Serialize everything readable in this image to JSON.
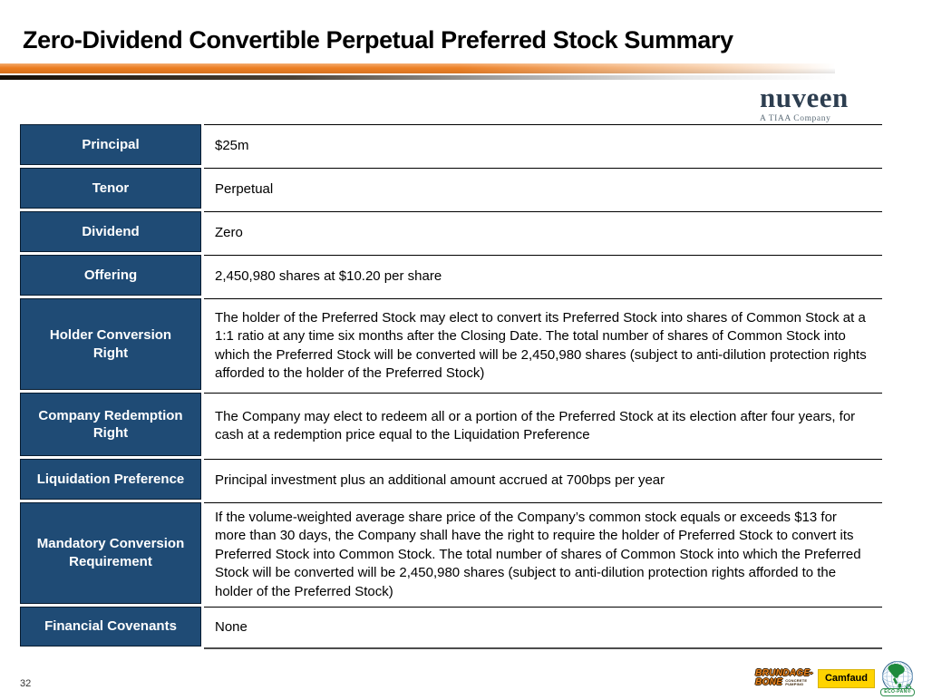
{
  "slide": {
    "title": "Zero-Dividend Convertible Perpetual Preferred Stock Summary",
    "page_number": "32"
  },
  "branding": {
    "nuveen": {
      "name": "nuveen",
      "tagline": "A TIAA Company"
    },
    "footer_logos": {
      "brundage_bone": {
        "line1": "BRUNDAGE-",
        "line2": "BONE",
        "sub_line1": "CONCRETE",
        "sub_line2": "PUMPING"
      },
      "camfaud": {
        "label": "Camfaud"
      },
      "eco_pan": {
        "label": "ECO-PAN®"
      }
    }
  },
  "table": {
    "rows": [
      {
        "label": "Principal",
        "value": "$25m"
      },
      {
        "label": "Tenor",
        "value": "Perpetual"
      },
      {
        "label": "Dividend",
        "value": "Zero"
      },
      {
        "label": "Offering",
        "value": "2,450,980 shares at $10.20 per share"
      },
      {
        "label": "Holder Conversion Right",
        "value": "The holder of the Preferred Stock may elect to convert its Preferred Stock into shares of Common Stock at a 1:1 ratio at any time six months after the Closing Date. The total number of shares of Common Stock into which the Preferred Stock will be converted will be 2,450,980 shares (subject to anti-dilution protection rights afforded to the holder of the Preferred Stock)"
      },
      {
        "label": "Company Redemption Right",
        "value": "The Company may elect to redeem all or a portion of the Preferred Stock at its election after four years, for cash at a redemption price equal to the Liquidation Preference"
      },
      {
        "label": "Liquidation Preference",
        "value": "Principal investment plus an additional amount accrued at 700bps per year"
      },
      {
        "label": "Mandatory Conversion Requirement",
        "value": "If the volume-weighted average share price of the Company’s common stock equals or exceeds $13 for more than 30 days, the Company shall have the right to require the holder of Preferred Stock to convert its Preferred Stock into Common Stock. The total number of shares of Common Stock into which the Preferred Stock will be converted will be 2,450,980 shares (subject to anti-dilution protection rights afforded to the holder of the Preferred Stock)"
      },
      {
        "label": "Financial Covenants",
        "value": "None"
      }
    ]
  },
  "colors": {
    "label_cell_blue": "#1f4b75",
    "accent_orange": "#ed7c1e",
    "nuveen_navy": "#2d3e50",
    "camfaud_yellow": "#ffd400",
    "ecopan_green": "#1f8a3d"
  }
}
